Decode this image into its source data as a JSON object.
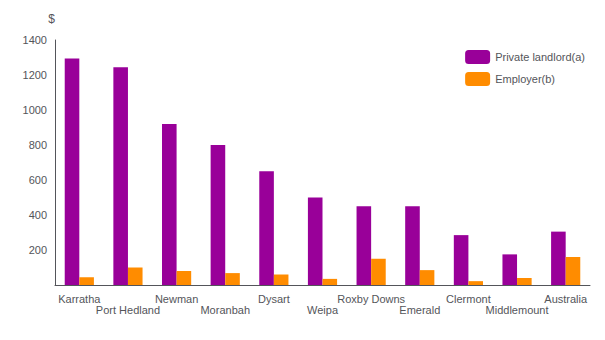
{
  "chart_data": {
    "type": "bar",
    "categories": [
      "Karratha",
      "Port Hedland",
      "Newman",
      "Moranbah",
      "Dysart",
      "Weipa",
      "Roxby Downs",
      "Emerald",
      "Clermont",
      "Middlemount",
      "Australia"
    ],
    "series": [
      {
        "name": "Private landlord(a)",
        "color": "#990099",
        "values": [
          1295,
          1245,
          920,
          800,
          650,
          500,
          450,
          450,
          285,
          175,
          305
        ]
      },
      {
        "name": "Employer(b)",
        "color": "#FF8C00",
        "values": [
          45,
          100,
          80,
          68,
          60,
          35,
          150,
          85,
          22,
          40,
          160
        ]
      }
    ],
    "y_label": "$",
    "ylim": [
      0,
      1400
    ],
    "yticks": [
      200,
      400,
      600,
      800,
      1000,
      1200,
      1400
    ],
    "grid": false,
    "legend": "upper right"
  }
}
